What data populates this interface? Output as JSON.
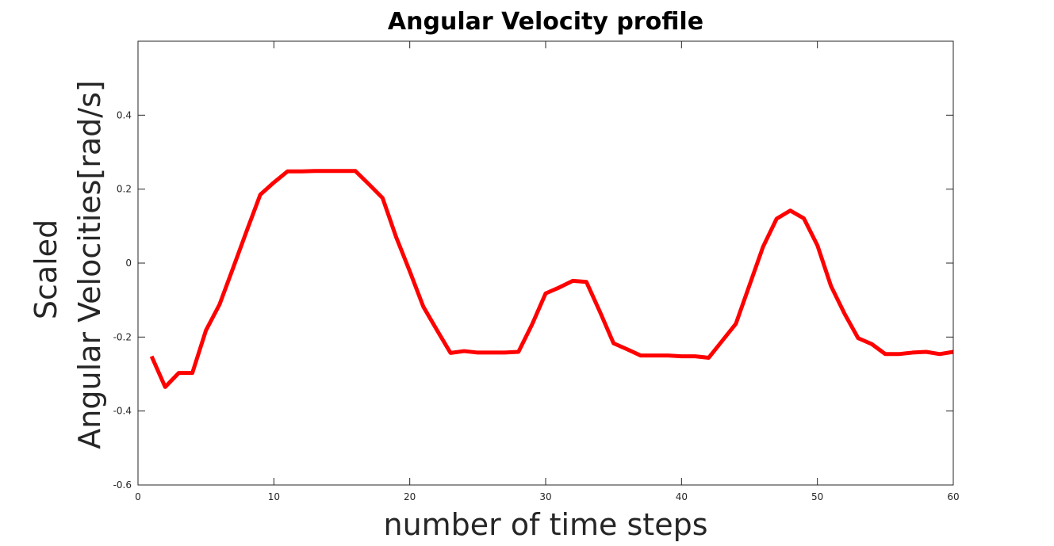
{
  "chart_data": {
    "type": "line",
    "title": "Angular Velocity profile",
    "xlabel": "number of time steps",
    "ylabel_line1": "Scaled",
    "ylabel_line2": "Angular Velocities[rad/s]",
    "xlim": [
      0,
      60
    ],
    "ylim": [
      -0.6,
      0.6
    ],
    "xticks": [
      0,
      10,
      20,
      30,
      40,
      50,
      60
    ],
    "xtick_labels": [
      "0",
      "10",
      "20",
      "30",
      "40",
      "50",
      "60"
    ],
    "yticks": [
      -0.6,
      -0.4,
      -0.2,
      0,
      0.2,
      0.4
    ],
    "ytick_labels": [
      "-0.6",
      "-0.4",
      "-0.2",
      "0",
      "0.2",
      "0.4"
    ],
    "grid": false,
    "legend": "none",
    "series": [
      {
        "color": "#ff0000",
        "x": [
          1,
          2,
          3,
          4,
          5,
          6,
          7,
          8,
          9,
          10,
          11,
          12,
          13,
          14,
          15,
          16,
          17,
          18,
          19,
          20,
          21,
          22,
          23,
          24,
          25,
          26,
          27,
          28,
          29,
          30,
          31,
          32,
          33,
          34,
          35,
          36,
          37,
          38,
          39,
          40,
          41,
          42,
          43,
          44,
          45,
          46,
          47,
          48,
          49,
          50,
          51,
          52,
          53,
          54,
          55,
          56,
          57,
          58,
          59,
          60
        ],
        "y": [
          -0.252,
          -0.335,
          -0.297,
          -0.297,
          -0.182,
          -0.112,
          -0.013,
          0.087,
          0.185,
          0.218,
          0.248,
          0.248,
          0.249,
          0.249,
          0.249,
          0.249,
          0.213,
          0.176,
          0.07,
          -0.022,
          -0.118,
          -0.181,
          -0.243,
          -0.238,
          -0.242,
          -0.242,
          -0.242,
          -0.24,
          -0.166,
          -0.082,
          -0.066,
          -0.048,
          -0.051,
          -0.132,
          -0.217,
          -0.233,
          -0.25,
          -0.25,
          -0.25,
          -0.252,
          -0.252,
          -0.256,
          -0.21,
          -0.164,
          -0.06,
          0.044,
          0.12,
          0.142,
          0.121,
          0.048,
          -0.062,
          -0.137,
          -0.203,
          -0.219,
          -0.246,
          -0.246,
          -0.242,
          -0.24,
          -0.246,
          -0.24
        ]
      }
    ]
  }
}
